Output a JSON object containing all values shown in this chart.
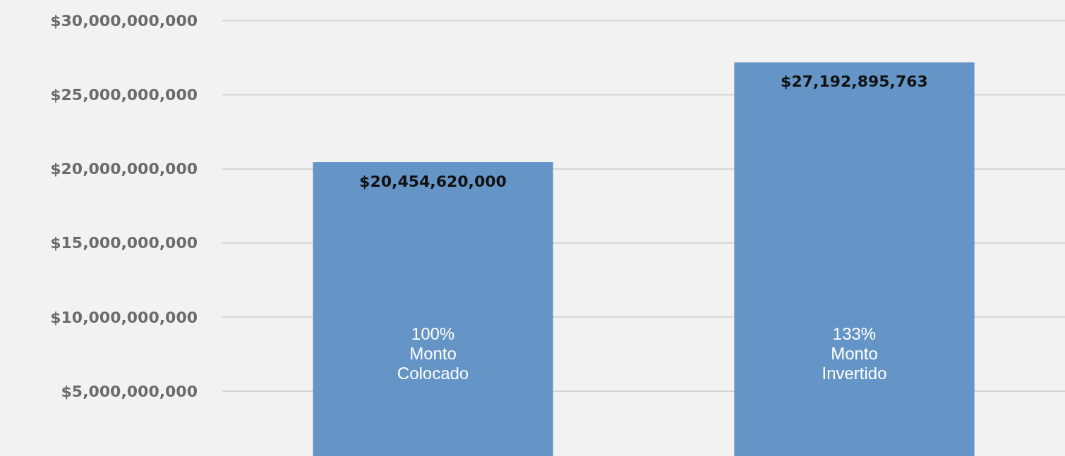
{
  "chart_data": {
    "type": "bar",
    "categories": [
      "100% Monto Colocado",
      "133% Monto Invertido"
    ],
    "values": [
      20454620000,
      27192895763
    ],
    "value_labels": [
      "$20,454,620,000",
      "$27,192,895,763"
    ],
    "color": "#6495c6",
    "ylim": [
      620000000,
      31400000000
    ],
    "yticks": [
      {
        "value": 5000000000,
        "label": "$5,000,000,000"
      },
      {
        "value": 10000000000,
        "label": "$10,000,000,000"
      },
      {
        "value": 15000000000,
        "label": "$15,000,000,000"
      },
      {
        "value": 20000000000,
        "label": "$20,000,000,000"
      },
      {
        "value": 25000000000,
        "label": "$25,000,000,000"
      },
      {
        "value": 30000000000,
        "label": "$30,000,000,000"
      }
    ],
    "grid": "y"
  }
}
